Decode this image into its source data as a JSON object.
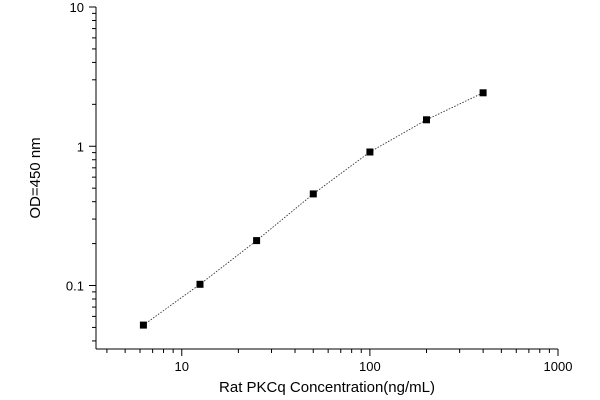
{
  "chart_data": {
    "type": "scatter",
    "title": "",
    "xlabel": "Rat PKCq Concentration(ng/mL)",
    "ylabel": "OD=450 nm",
    "xscale": "log",
    "yscale": "log",
    "xlim": [
      3.5,
      1000
    ],
    "ylim": [
      0.035,
      10
    ],
    "x_ticks": [
      10,
      100,
      1000
    ],
    "x_tick_labels": [
      "10",
      "100",
      "1000"
    ],
    "y_ticks": [
      0.1,
      1,
      10
    ],
    "y_tick_labels": [
      "0.1",
      "1",
      "10"
    ],
    "grid": false,
    "legend": "none",
    "marker": "square",
    "line_style": "dotted",
    "series": [
      {
        "x": [
          6.25,
          12.5,
          25,
          50,
          100,
          200,
          400
        ],
        "y": [
          0.052,
          0.102,
          0.21,
          0.455,
          0.91,
          1.55,
          2.42
        ]
      }
    ]
  }
}
